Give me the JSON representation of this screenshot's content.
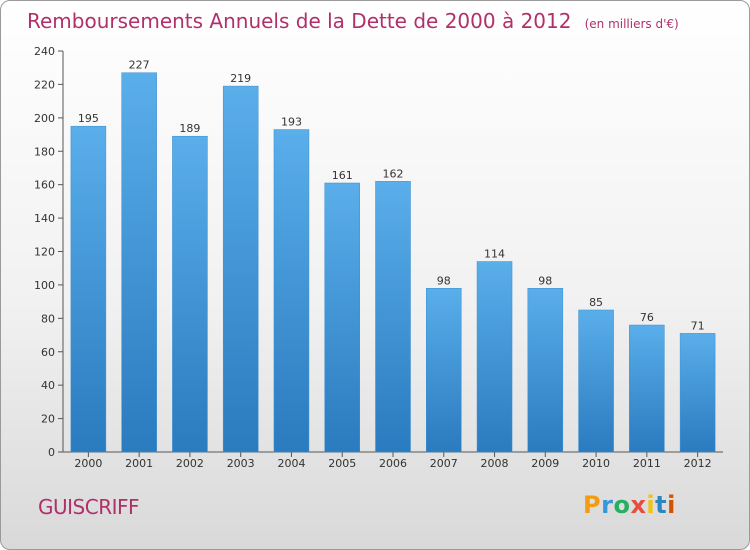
{
  "title": "Remboursements Annuels de la Dette de 2000 à 2012",
  "unit": "(en milliers d'€)",
  "commune": "GUISCRIFF",
  "logo": {
    "letters": [
      "P",
      "r",
      "o",
      "x",
      "i",
      "t",
      "i"
    ],
    "colors": [
      "#f39c12",
      "#3498db",
      "#27ae60",
      "#e74c3c",
      "#f1c40f",
      "#2e86c1",
      "#d35400"
    ]
  },
  "colors": {
    "bar": "#4aa3e0",
    "bar_dark": "#2a7bbf",
    "text": "#b0306a"
  },
  "chart_data": {
    "type": "bar",
    "categories": [
      "2000",
      "2001",
      "2002",
      "2003",
      "2004",
      "2005",
      "2006",
      "2007",
      "2008",
      "2009",
      "2010",
      "2011",
      "2012"
    ],
    "values": [
      195,
      227,
      189,
      219,
      193,
      161,
      162,
      98,
      114,
      98,
      85,
      76,
      71
    ],
    "title": "Remboursements Annuels de la Dette de 2000 à 2012",
    "ylim": [
      0,
      240
    ],
    "yticks": [
      0,
      20,
      40,
      60,
      80,
      100,
      120,
      140,
      160,
      180,
      200,
      220,
      240
    ],
    "grid": false
  }
}
